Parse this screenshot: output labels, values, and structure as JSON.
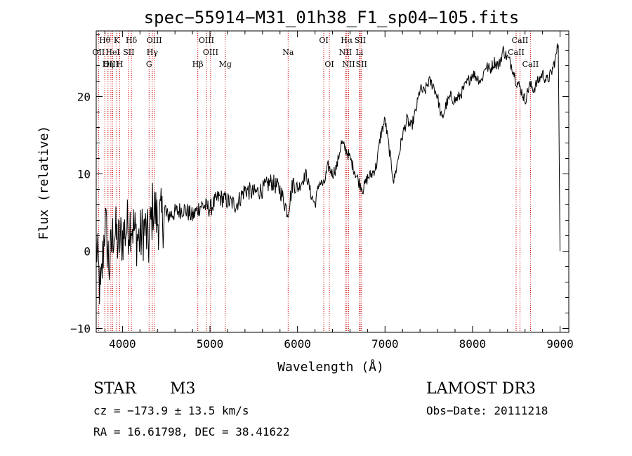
{
  "chart_data": {
    "type": "line",
    "title": "spec−55914−M31_01h38_F1_sp04−105.fits",
    "xlabel": "Wavelength (Å)",
    "ylabel": "Flux (relative)",
    "xlim": [
      3700,
      9100
    ],
    "ylim": [
      -10.5,
      28.5
    ],
    "xticks": [
      4000,
      5000,
      6000,
      7000,
      8000,
      9000
    ],
    "xtick_labels": [
      "4000",
      "5000",
      "6000",
      "7000",
      "8000",
      "9000"
    ],
    "yticks": [
      -10,
      0,
      10,
      20
    ],
    "ytick_labels": [
      "−10",
      "0",
      "10",
      "20"
    ],
    "series": [
      {
        "name": "spectrum",
        "x": [
          3700,
          3750,
          3800,
          3850,
          3900,
          3950,
          4000,
          4050,
          4100,
          4150,
          4200,
          4250,
          4300,
          4350,
          4400,
          4500,
          4600,
          4700,
          4800,
          4900,
          5000,
          5100,
          5200,
          5300,
          5400,
          5500,
          5600,
          5700,
          5800,
          5890,
          5950,
          6000,
          6100,
          6150,
          6200,
          6250,
          6300,
          6350,
          6400,
          6450,
          6500,
          6560,
          6600,
          6650,
          6700,
          6750,
          6800,
          6850,
          6900,
          6950,
          7000,
          7050,
          7100,
          7150,
          7200,
          7250,
          7300,
          7350,
          7400,
          7450,
          7500,
          7550,
          7600,
          7650,
          7700,
          7750,
          7800,
          7850,
          7900,
          7950,
          8000,
          8050,
          8100,
          8150,
          8200,
          8250,
          8300,
          8350,
          8400,
          8450,
          8500,
          8550,
          8600,
          8650,
          8700,
          8750,
          8800,
          8850,
          8900,
          8950,
          8980,
          9000
        ],
        "y": [
          1,
          -6,
          4,
          -2,
          3,
          1,
          2,
          3,
          4,
          2,
          1.5,
          3,
          1,
          6,
          4,
          4.5,
          5,
          5.5,
          4.5,
          6,
          5.5,
          7,
          6.5,
          6,
          8,
          7.5,
          8,
          9,
          8,
          5,
          9,
          8,
          10,
          7.5,
          6,
          9,
          8.5,
          11,
          10,
          11,
          14,
          13,
          12,
          10.5,
          9,
          8,
          9.5,
          10,
          11,
          15,
          17,
          13,
          9,
          12,
          15,
          17,
          16,
          18,
          21,
          20.5,
          22,
          21.5,
          20,
          17,
          19,
          20,
          19.5,
          20,
          21,
          22,
          23,
          22.5,
          22,
          24,
          23.5,
          24.5,
          24,
          26,
          25,
          24,
          22,
          21,
          19.5,
          21.5,
          21,
          22,
          23,
          22,
          23,
          25,
          27,
          0
        ]
      }
    ],
    "line_labels": [
      {
        "label": "Hθ",
        "x": 3798,
        "row": 1
      },
      {
        "label": "K",
        "x": 3934,
        "row": 1
      },
      {
        "label": "Hδ",
        "x": 4102,
        "row": 1
      },
      {
        "label": "OIII",
        "x": 4363,
        "row": 1
      },
      {
        "label": "OIII",
        "x": 4959,
        "row": 1
      },
      {
        "label": "OI",
        "x": 6300,
        "row": 1
      },
      {
        "label": "Hα",
        "x": 6563,
        "row": 1
      },
      {
        "label": "SII",
        "x": 6717,
        "row": 1
      },
      {
        "label": "CaII",
        "x": 8542,
        "row": 1
      },
      {
        "label": "OII",
        "x": 3727,
        "row": 2
      },
      {
        "label": "HeI",
        "x": 3889,
        "row": 2
      },
      {
        "label": "SII",
        "x": 4072,
        "row": 2
      },
      {
        "label": "Hγ",
        "x": 4341,
        "row": 2
      },
      {
        "label": "OIII",
        "x": 5007,
        "row": 2
      },
      {
        "label": "Na",
        "x": 5893,
        "row": 2
      },
      {
        "label": "NII",
        "x": 6548,
        "row": 2
      },
      {
        "label": "Li",
        "x": 6708,
        "row": 2
      },
      {
        "label": "CaII",
        "x": 8498,
        "row": 2
      },
      {
        "label": "OIII",
        "x": 3868,
        "row": 3
      },
      {
        "label": "Hη",
        "x": 3835,
        "row": 3
      },
      {
        "label": "H",
        "x": 3969,
        "row": 3
      },
      {
        "label": "G",
        "x": 4304,
        "row": 3
      },
      {
        "label": "Hβ",
        "x": 4861,
        "row": 3
      },
      {
        "label": "Mg",
        "x": 5175,
        "row": 3
      },
      {
        "label": "OI",
        "x": 6364,
        "row": 3
      },
      {
        "label": "NII",
        "x": 6584,
        "row": 3
      },
      {
        "label": "SII",
        "x": 6731,
        "row": 3
      },
      {
        "label": "CaII",
        "x": 8662,
        "row": 3
      }
    ],
    "line_markers": [
      3727,
      3798,
      3835,
      3868,
      3889,
      3934,
      3969,
      4072,
      4102,
      4304,
      4341,
      4363,
      4861,
      4959,
      5007,
      5175,
      5893,
      6300,
      6364,
      6548,
      6563,
      6584,
      6708,
      6717,
      6731,
      8498,
      8542,
      8662
    ],
    "marker_color": "#cc0000"
  },
  "info": {
    "class": "STAR",
    "subclass": "M3",
    "survey": "LAMOST DR3",
    "cz": "cz = −173.9 ± 13.5 km/s",
    "obs_date": "Obs−Date: 20111218",
    "coords": "RA =  16.61798, DEC =  38.41622"
  }
}
